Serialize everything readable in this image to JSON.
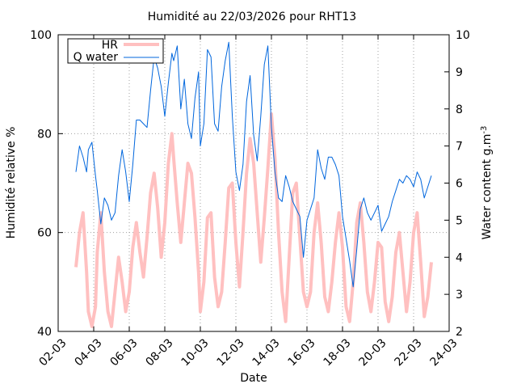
{
  "chart_data": {
    "type": "line",
    "title": "Humidité au 22/03/2026 pour RHT13",
    "xlabel": "Date",
    "ylabel_left": "Humidité relative %",
    "ylabel_right": "Water content g.m",
    "ylabel_right_superscript": "-3",
    "x_start_day": 2,
    "x_end_day": 24,
    "xticks": [
      {
        "day": 2,
        "label": "02-03"
      },
      {
        "day": 4,
        "label": "04-03"
      },
      {
        "day": 6,
        "label": "06-03"
      },
      {
        "day": 8,
        "label": "08-03"
      },
      {
        "day": 10,
        "label": "10-03"
      },
      {
        "day": 12,
        "label": "12-03"
      },
      {
        "day": 14,
        "label": "14-03"
      },
      {
        "day": 16,
        "label": "16-03"
      },
      {
        "day": 18,
        "label": "18-03"
      },
      {
        "day": 20,
        "label": "20-03"
      },
      {
        "day": 22,
        "label": "22-03"
      },
      {
        "day": 24,
        "label": "24-03"
      }
    ],
    "ylim_left": [
      40,
      100
    ],
    "yticks_left": [
      40,
      60,
      80,
      100
    ],
    "ylim_right": [
      2,
      10
    ],
    "yticks_right": [
      2,
      3,
      4,
      5,
      6,
      7,
      8,
      9,
      10
    ],
    "grid": true,
    "legend_position": "top-left",
    "series": [
      {
        "name": "HR",
        "axis": "left",
        "color": "#ffc0c0",
        "x": [
          3.0,
          3.2,
          3.4,
          3.6,
          3.7,
          3.9,
          4.1,
          4.2,
          4.4,
          4.6,
          4.8,
          5.0,
          5.2,
          5.4,
          5.6,
          5.8,
          6.0,
          6.2,
          6.4,
          6.6,
          6.8,
          7.0,
          7.2,
          7.4,
          7.6,
          7.8,
          8.0,
          8.2,
          8.4,
          8.5,
          8.7,
          8.9,
          9.1,
          9.3,
          9.5,
          9.7,
          9.9,
          10.0,
          10.2,
          10.4,
          10.6,
          10.8,
          11.0,
          11.2,
          11.4,
          11.6,
          11.8,
          12.0,
          12.2,
          12.4,
          12.6,
          12.8,
          13.0,
          13.2,
          13.4,
          13.6,
          13.8,
          14.0,
          14.2,
          14.4,
          14.6,
          14.8,
          15.0,
          15.2,
          15.4,
          15.6,
          15.8,
          16.0,
          16.2,
          16.4,
          16.6,
          16.8,
          17.0,
          17.2,
          17.4,
          17.6,
          17.8,
          18.0,
          18.2,
          18.4,
          18.6,
          18.8,
          19.0,
          19.2,
          19.4,
          19.6,
          19.8,
          20.0,
          20.2,
          20.4,
          20.6,
          20.8,
          21.0,
          21.2,
          21.4,
          21.6,
          21.8,
          22.0,
          22.2,
          22.4,
          22.6,
          22.8,
          23.0
        ],
        "values": [
          53,
          60,
          64,
          52,
          44,
          41,
          45,
          56,
          64,
          52,
          44,
          41,
          48,
          55,
          50,
          44,
          48,
          57,
          62,
          56,
          51,
          59,
          68,
          72,
          65,
          55,
          62,
          74,
          80,
          75,
          66,
          58,
          66,
          74,
          72,
          63,
          52,
          44,
          50,
          63,
          64,
          51,
          45,
          48,
          58,
          69,
          70,
          58,
          49,
          60,
          72,
          79,
          74,
          64,
          54,
          63,
          73,
          84,
          75,
          60,
          48,
          42,
          55,
          68,
          70,
          59,
          48,
          45,
          48,
          60,
          66,
          58,
          47,
          44,
          50,
          58,
          64,
          57,
          45,
          42,
          50,
          62,
          66,
          58,
          48,
          44,
          50,
          58,
          57,
          46,
          42,
          47,
          56,
          60,
          52,
          44,
          50,
          60,
          64,
          54,
          43,
          47,
          54
        ]
      },
      {
        "name": "Q water",
        "axis": "right",
        "color": "#0066dd",
        "x": [
          3.0,
          3.2,
          3.4,
          3.6,
          3.7,
          3.9,
          4.1,
          4.2,
          4.4,
          4.6,
          4.8,
          5.0,
          5.2,
          5.4,
          5.6,
          5.8,
          6.0,
          6.2,
          6.4,
          6.6,
          6.8,
          7.0,
          7.2,
          7.4,
          7.6,
          7.8,
          8.0,
          8.2,
          8.4,
          8.5,
          8.7,
          8.9,
          9.1,
          9.3,
          9.5,
          9.7,
          9.9,
          10.0,
          10.2,
          10.4,
          10.6,
          10.8,
          11.0,
          11.2,
          11.4,
          11.6,
          11.8,
          12.0,
          12.2,
          12.4,
          12.6,
          12.8,
          13.0,
          13.2,
          13.4,
          13.6,
          13.8,
          14.0,
          14.2,
          14.4,
          14.6,
          14.8,
          15.0,
          15.2,
          15.4,
          15.6,
          15.8,
          16.0,
          16.2,
          16.4,
          16.6,
          16.8,
          17.0,
          17.2,
          17.4,
          17.6,
          17.8,
          18.0,
          18.2,
          18.4,
          18.6,
          18.8,
          19.0,
          19.2,
          19.4,
          19.6,
          19.8,
          20.0,
          20.2,
          20.4,
          20.6,
          20.8,
          21.0,
          21.2,
          21.4,
          21.6,
          21.8,
          22.0,
          22.2,
          22.4,
          22.6,
          22.8,
          23.0
        ],
        "values": [
          6.3,
          7.0,
          6.7,
          6.3,
          6.9,
          7.1,
          6.2,
          5.8,
          4.9,
          5.6,
          5.4,
          5.0,
          5.2,
          6.2,
          6.9,
          6.3,
          5.5,
          6.5,
          7.7,
          7.7,
          7.6,
          7.5,
          8.5,
          9.4,
          9.1,
          8.6,
          7.8,
          8.7,
          9.5,
          9.3,
          9.7,
          8.0,
          8.8,
          7.6,
          7.2,
          8.3,
          9.0,
          7.0,
          7.6,
          9.6,
          9.4,
          7.6,
          7.4,
          8.6,
          9.3,
          9.8,
          7.8,
          6.3,
          5.8,
          6.5,
          8.2,
          8.9,
          7.3,
          6.6,
          7.8,
          9.2,
          9.7,
          7.5,
          6.3,
          5.6,
          5.5,
          6.2,
          5.9,
          5.5,
          5.3,
          5.1,
          4.0,
          5.0,
          5.3,
          5.6,
          6.9,
          6.4,
          6.1,
          6.7,
          6.7,
          6.5,
          6.2,
          5.1,
          4.5,
          3.9,
          3.2,
          4.2,
          5.3,
          5.6,
          5.2,
          5.0,
          5.2,
          5.4,
          4.7,
          4.9,
          5.1,
          5.5,
          5.8,
          6.1,
          6.0,
          6.2,
          6.1,
          5.9,
          6.3,
          6.1,
          5.6,
          5.9,
          6.2
        ]
      }
    ]
  }
}
